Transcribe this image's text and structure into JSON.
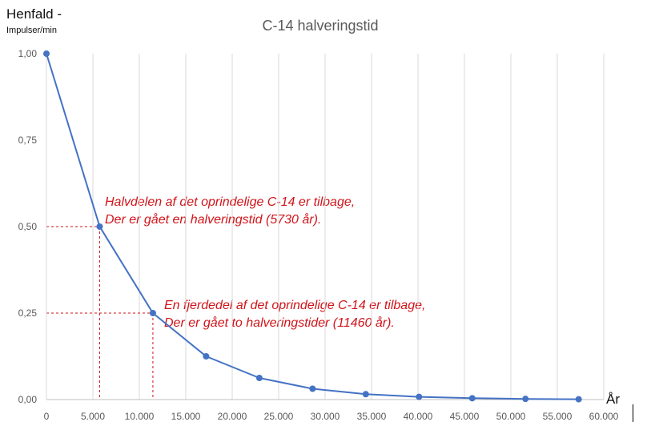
{
  "chart_data": {
    "type": "line",
    "title": "C-14 halveringstid",
    "ylabel": "Henfald  -",
    "ylabel_unit": "Impulser/min",
    "xlabel": "År",
    "xlim": [
      0,
      60000
    ],
    "ylim": [
      0,
      1
    ],
    "x_ticks": [
      0,
      5000,
      10000,
      15000,
      20000,
      25000,
      30000,
      35000,
      40000,
      45000,
      50000,
      55000,
      60000
    ],
    "x_tick_labels": [
      "0",
      "5.000",
      "10.000",
      "15.000",
      "20.000",
      "25.000",
      "30.000",
      "35.000",
      "40.000",
      "45.000",
      "50.000",
      "55.000",
      "60.000"
    ],
    "y_ticks": [
      0,
      0.25,
      0.5,
      0.75,
      1.0
    ],
    "y_tick_labels": [
      "0,00",
      "0,25",
      "0,50",
      "0,75",
      "1,00"
    ],
    "grid": "vertical",
    "series": [
      {
        "color": "#4472c4",
        "x": [
          0,
          5730,
          11460,
          17190,
          22920,
          28650,
          34380,
          40110,
          45840,
          51570,
          57300
        ],
        "y": [
          1.0,
          0.5,
          0.25,
          0.125,
          0.0625,
          0.03125,
          0.015625,
          0.0078125,
          0.00390625,
          0.001953125,
          0.0009765625
        ]
      }
    ],
    "annotations": [
      {
        "point": [
          5730,
          0.5
        ],
        "lines": [
          "Halvdelen af det oprindelige C-14 er tilbage,",
          "Der er gået en halveringstid (5730 år)."
        ]
      },
      {
        "point": [
          11460,
          0.25
        ],
        "lines": [
          "En fjerdedel af det oprindelige C-14 er tilbage,",
          "Der er gået to halveringstider (11460 år)."
        ]
      }
    ],
    "annotation_color": "#d0141a"
  }
}
